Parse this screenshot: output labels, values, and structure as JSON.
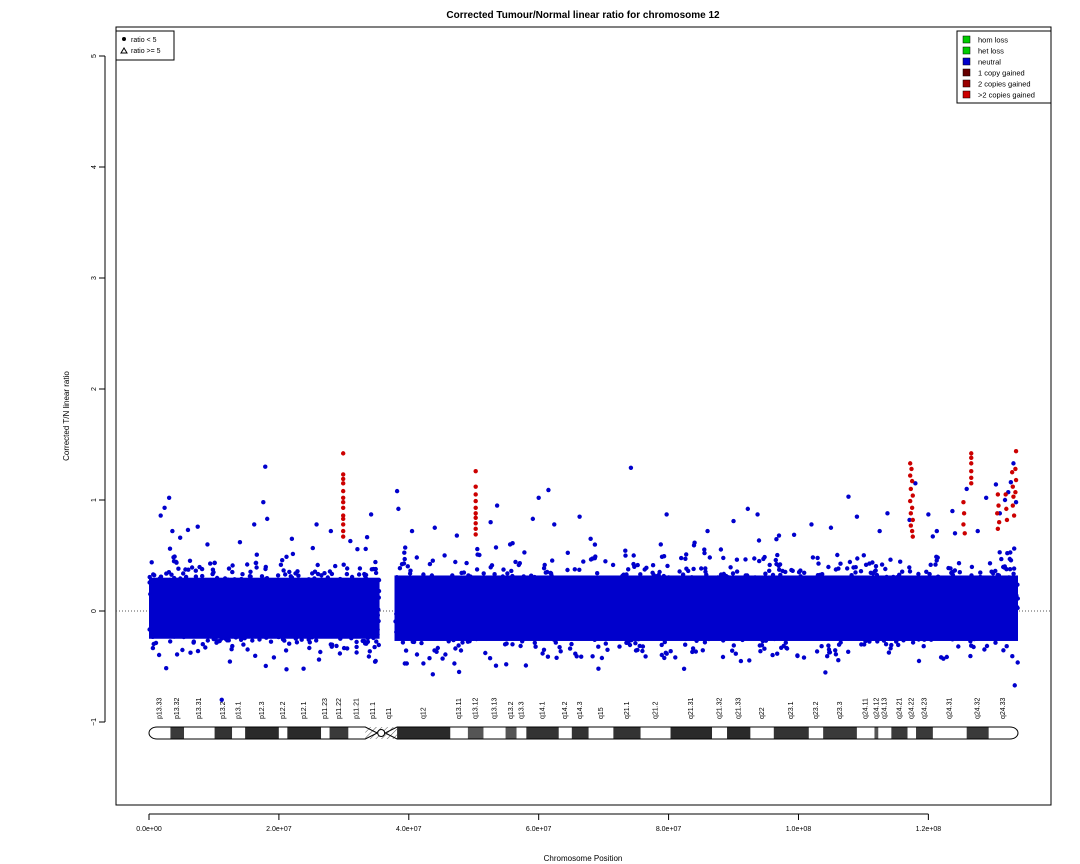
{
  "chart_data": {
    "type": "scatter",
    "title": "Corrected Tumour/Normal linear ratio for chromosome  12",
    "xlabel": "Chromosome Position",
    "ylabel": "Corrected T/N linear ratio",
    "xlim": [
      0,
      133800000
    ],
    "ylim": [
      -1.75,
      5.25
    ],
    "x_ticks": [
      0,
      20000000,
      40000000,
      60000000,
      80000000,
      100000000,
      120000000
    ],
    "x_tick_labels": [
      "0.0e+00",
      "2.0e+07",
      "4.0e+07",
      "6.0e+07",
      "8.0e+07",
      "1.0e+08",
      "1.2e+08"
    ],
    "y_ticks": [
      -1,
      0,
      1,
      2,
      3,
      4,
      5
    ],
    "y_tick_labels": [
      "−1",
      "0",
      "1",
      "2",
      "3",
      "4",
      "5"
    ],
    "reference_line_y": 0,
    "centromere_gap": [
      35500000,
      37800000
    ],
    "point_legend": [
      "ratio < 5",
      "ratio >= 5"
    ],
    "color_legend": [
      {
        "label": "hom loss",
        "color": "#00cc00"
      },
      {
        "label": "het loss",
        "color": "#00cc00"
      },
      {
        "label": "neutral",
        "color": "#0000cc"
      },
      {
        "label": "1 copy gained",
        "color": "#660000"
      },
      {
        "label": "2 copies gained",
        "color": "#990000"
      },
      {
        "label": ">2 copies gained",
        "color": "#cc0000"
      }
    ],
    "series": [
      {
        "name": "neutral",
        "color": "#0000cc",
        "typical_band": [
          -0.35,
          0.45
        ],
        "outliers": [
          [
            1800000,
            0.86
          ],
          [
            2400000,
            0.93
          ],
          [
            3100000,
            1.02
          ],
          [
            3600000,
            0.72
          ],
          [
            4800000,
            0.66
          ],
          [
            6000000,
            0.73
          ],
          [
            7500000,
            0.76
          ],
          [
            9000000,
            0.6
          ],
          [
            11200000,
            -0.8
          ],
          [
            14000000,
            0.62
          ],
          [
            16200000,
            0.78
          ],
          [
            17900000,
            1.3
          ],
          [
            17600000,
            0.98
          ],
          [
            18200000,
            0.83
          ],
          [
            22000000,
            0.65
          ],
          [
            25800000,
            0.78
          ],
          [
            28000000,
            0.72
          ],
          [
            31000000,
            0.63
          ],
          [
            34200000,
            0.87
          ],
          [
            34900000,
            -0.45
          ],
          [
            38200000,
            1.08
          ],
          [
            38400000,
            0.92
          ],
          [
            40500000,
            0.72
          ],
          [
            44000000,
            0.75
          ],
          [
            47400000,
            0.68
          ],
          [
            52600000,
            0.8
          ],
          [
            53600000,
            0.95
          ],
          [
            55600000,
            0.6
          ],
          [
            59100000,
            0.83
          ],
          [
            60000000,
            1.02
          ],
          [
            61500000,
            1.09
          ],
          [
            62400000,
            0.78
          ],
          [
            66300000,
            0.85
          ],
          [
            68000000,
            0.65
          ],
          [
            74200000,
            1.29
          ],
          [
            79700000,
            0.87
          ],
          [
            78800000,
            0.6
          ],
          [
            86000000,
            0.72
          ],
          [
            90000000,
            0.81
          ],
          [
            92200000,
            0.92
          ],
          [
            93700000,
            0.87
          ],
          [
            97000000,
            0.68
          ],
          [
            102000000,
            0.78
          ],
          [
            105000000,
            0.75
          ],
          [
            107700000,
            1.03
          ],
          [
            109000000,
            0.85
          ],
          [
            112500000,
            0.72
          ],
          [
            113700000,
            0.88
          ],
          [
            117100000,
            0.82
          ],
          [
            118000000,
            1.15
          ],
          [
            120000000,
            0.87
          ],
          [
            121300000,
            0.72
          ],
          [
            123700000,
            0.9
          ],
          [
            124100000,
            0.7
          ],
          [
            125900000,
            1.1
          ],
          [
            127600000,
            0.72
          ],
          [
            128900000,
            1.02
          ],
          [
            130400000,
            1.14
          ],
          [
            131000000,
            0.88
          ],
          [
            131800000,
            1.0
          ],
          [
            132300000,
            1.07
          ],
          [
            132700000,
            1.16
          ],
          [
            133100000,
            1.33
          ],
          [
            133500000,
            0.98
          ],
          [
            133300000,
            -0.67
          ],
          [
            69200000,
            -0.52
          ],
          [
            43700000,
            -0.57
          ],
          [
            23800000,
            -0.52
          ],
          [
            55000000,
            -0.48
          ]
        ]
      },
      {
        "name": ">2 copies gained",
        "color": "#cc0000",
        "points": [
          [
            29900000,
            1.42
          ],
          [
            29900000,
            1.23
          ],
          [
            29900000,
            1.19
          ],
          [
            29900000,
            1.15
          ],
          [
            29900000,
            1.08
          ],
          [
            29900000,
            1.02
          ],
          [
            29900000,
            0.98
          ],
          [
            29900000,
            0.93
          ],
          [
            29900000,
            0.86
          ],
          [
            29900000,
            0.83
          ],
          [
            29900000,
            0.78
          ],
          [
            29900000,
            0.72
          ],
          [
            29900000,
            0.67
          ],
          [
            50300000,
            1.26
          ],
          [
            50300000,
            1.12
          ],
          [
            50300000,
            1.05
          ],
          [
            50300000,
            0.99
          ],
          [
            50300000,
            0.93
          ],
          [
            50300000,
            0.88
          ],
          [
            50300000,
            0.84
          ],
          [
            50300000,
            0.79
          ],
          [
            50300000,
            0.74
          ],
          [
            50300000,
            0.69
          ],
          [
            117200000,
            1.33
          ],
          [
            117400000,
            1.28
          ],
          [
            117200000,
            1.22
          ],
          [
            117500000,
            1.17
          ],
          [
            117300000,
            1.1
          ],
          [
            117600000,
            1.04
          ],
          [
            117200000,
            0.99
          ],
          [
            117500000,
            0.93
          ],
          [
            117300000,
            0.88
          ],
          [
            117600000,
            0.82
          ],
          [
            117300000,
            0.77
          ],
          [
            117500000,
            0.72
          ],
          [
            117600000,
            0.67
          ],
          [
            126600000,
            1.42
          ],
          [
            126600000,
            1.38
          ],
          [
            126600000,
            1.33
          ],
          [
            126600000,
            1.26
          ],
          [
            126600000,
            1.2
          ],
          [
            126600000,
            1.15
          ],
          [
            125400000,
            0.98
          ],
          [
            125500000,
            0.88
          ],
          [
            125400000,
            0.78
          ],
          [
            125600000,
            0.7
          ],
          [
            130700000,
            1.05
          ],
          [
            130800000,
            0.95
          ],
          [
            130600000,
            0.88
          ],
          [
            130900000,
            0.8
          ],
          [
            130700000,
            0.74
          ],
          [
            131900000,
            1.05
          ],
          [
            132000000,
            0.92
          ],
          [
            132100000,
            0.82
          ],
          [
            132900000,
            1.25
          ],
          [
            133000000,
            1.12
          ],
          [
            133100000,
            1.03
          ],
          [
            133000000,
            0.95
          ],
          [
            133200000,
            0.86
          ],
          [
            133500000,
            1.44
          ],
          [
            133400000,
            1.28
          ],
          [
            133500000,
            1.18
          ],
          [
            133400000,
            1.07
          ]
        ]
      }
    ],
    "ideogram": {
      "bands": [
        {
          "name": "p13.33",
          "start": 0,
          "end": 3300000,
          "stain": "gneg"
        },
        {
          "name": "p13.32",
          "start": 3300000,
          "end": 5400000,
          "stain": "gpos50"
        },
        {
          "name": "p13.31",
          "start": 5400000,
          "end": 10100000,
          "stain": "gneg"
        },
        {
          "name": "p13.2",
          "start": 10100000,
          "end": 12800000,
          "stain": "gpos75"
        },
        {
          "name": "p13.1",
          "start": 12800000,
          "end": 14800000,
          "stain": "gneg"
        },
        {
          "name": "p12.3",
          "start": 14800000,
          "end": 20000000,
          "stain": "gpos100"
        },
        {
          "name": "p12.2",
          "start": 20000000,
          "end": 21300000,
          "stain": "gneg"
        },
        {
          "name": "p12.1",
          "start": 21300000,
          "end": 26500000,
          "stain": "gpos100"
        },
        {
          "name": "p11.23",
          "start": 26500000,
          "end": 27800000,
          "stain": "gneg"
        },
        {
          "name": "p11.22",
          "start": 27800000,
          "end": 30700000,
          "stain": "gpos50"
        },
        {
          "name": "p11.21",
          "start": 30700000,
          "end": 33300000,
          "stain": "gneg"
        },
        {
          "name": "p11.1",
          "start": 33300000,
          "end": 35800000,
          "stain": "acen"
        },
        {
          "name": "q11",
          "start": 35800000,
          "end": 38200000,
          "stain": "acen"
        },
        {
          "name": "q12",
          "start": 38200000,
          "end": 46400000,
          "stain": "gpos100"
        },
        {
          "name": "q13.11",
          "start": 46400000,
          "end": 49100000,
          "stain": "gneg"
        },
        {
          "name": "q13.12",
          "start": 49100000,
          "end": 51500000,
          "stain": "gpos25"
        },
        {
          "name": "q13.13",
          "start": 51500000,
          "end": 54900000,
          "stain": "gneg"
        },
        {
          "name": "q13.2",
          "start": 54900000,
          "end": 56600000,
          "stain": "gpos25"
        },
        {
          "name": "q13.3",
          "start": 56600000,
          "end": 58100000,
          "stain": "gneg"
        },
        {
          "name": "q14.1",
          "start": 58100000,
          "end": 63100000,
          "stain": "gpos75"
        },
        {
          "name": "q14.2",
          "start": 63100000,
          "end": 65100000,
          "stain": "gneg"
        },
        {
          "name": "q14.3",
          "start": 65100000,
          "end": 67700000,
          "stain": "gpos75"
        },
        {
          "name": "q15",
          "start": 67700000,
          "end": 71500000,
          "stain": "gneg"
        },
        {
          "name": "q21.1",
          "start": 71500000,
          "end": 75700000,
          "stain": "gpos75"
        },
        {
          "name": "q21.2",
          "start": 75700000,
          "end": 80300000,
          "stain": "gneg"
        },
        {
          "name": "q21.31",
          "start": 80300000,
          "end": 86700000,
          "stain": "gpos100"
        },
        {
          "name": "q21.32",
          "start": 86700000,
          "end": 89000000,
          "stain": "gneg"
        },
        {
          "name": "q21.33",
          "start": 89000000,
          "end": 92600000,
          "stain": "gpos100"
        },
        {
          "name": "q22",
          "start": 92600000,
          "end": 96200000,
          "stain": "gneg"
        },
        {
          "name": "q23.1",
          "start": 96200000,
          "end": 101600000,
          "stain": "gpos75"
        },
        {
          "name": "q23.2",
          "start": 101600000,
          "end": 103800000,
          "stain": "gneg"
        },
        {
          "name": "q23.3",
          "start": 103800000,
          "end": 109000000,
          "stain": "gpos50"
        },
        {
          "name": "q24.11",
          "start": 109000000,
          "end": 111700000,
          "stain": "gneg"
        },
        {
          "name": "q24.12",
          "start": 111700000,
          "end": 112300000,
          "stain": "gpos25"
        },
        {
          "name": "q24.13",
          "start": 112300000,
          "end": 114300000,
          "stain": "gneg"
        },
        {
          "name": "q24.21",
          "start": 114300000,
          "end": 116800000,
          "stain": "gpos50"
        },
        {
          "name": "q24.22",
          "start": 116800000,
          "end": 118100000,
          "stain": "gneg"
        },
        {
          "name": "q24.23",
          "start": 118100000,
          "end": 120700000,
          "stain": "gpos50"
        },
        {
          "name": "q24.31",
          "start": 120700000,
          "end": 125900000,
          "stain": "gneg"
        },
        {
          "name": "q24.32",
          "start": 125900000,
          "end": 129300000,
          "stain": "gpos50"
        },
        {
          "name": "q24.33",
          "start": 129300000,
          "end": 133800000,
          "stain": "gneg"
        }
      ]
    }
  }
}
